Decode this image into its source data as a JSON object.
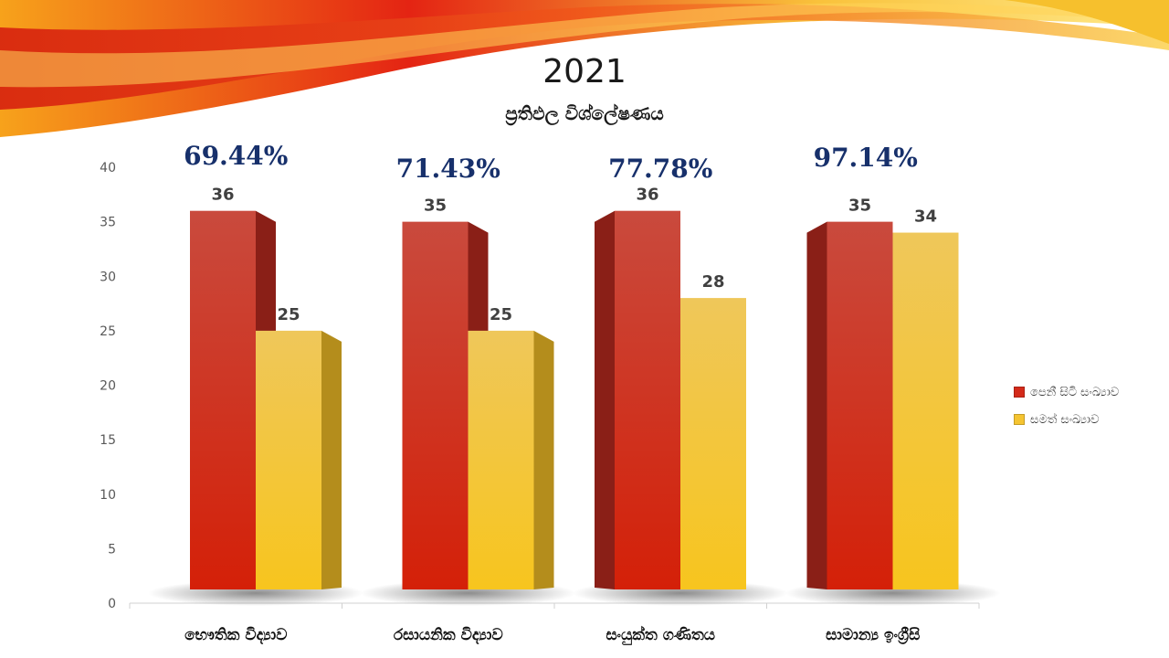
{
  "chart_data": {
    "type": "bar",
    "title": "2021",
    "subtitle": "ප්‍රතිඵල විශ්ලේෂණය",
    "categories": [
      "භෞතික විද්‍යාව",
      "රසායනික විද්‍යාව",
      "සංයුක්ත ගණිතය",
      "සාමාන්‍ය ඉංග්‍රීසි"
    ],
    "series": [
      {
        "name": "පෙනී සිටි සංඛ්‍යාව",
        "values": [
          36,
          35,
          36,
          35
        ],
        "color": "#d42a1a"
      },
      {
        "name": "සමත් සංඛ්‍යාව",
        "values": [
          25,
          25,
          28,
          34
        ],
        "color": "#f5c431"
      }
    ],
    "percentages": [
      "69.44%",
      "71.43%",
      "77.78%",
      "97.14%"
    ],
    "yticks": [
      0,
      5,
      10,
      15,
      20,
      25,
      30,
      35,
      40
    ],
    "ylim": [
      0,
      40
    ],
    "legend_position": "right",
    "grid": false
  }
}
